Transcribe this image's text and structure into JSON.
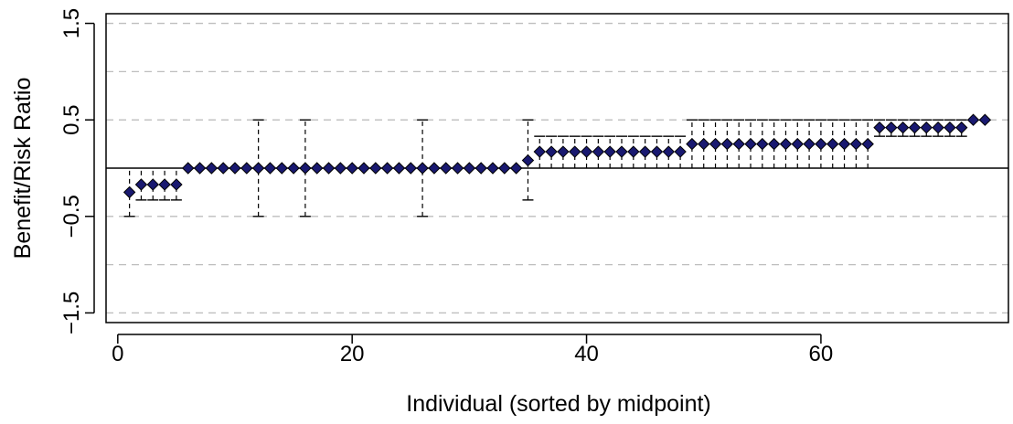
{
  "chart_data": {
    "type": "scatter",
    "title": "",
    "xlabel": "Individual (sorted by midpoint)",
    "ylabel": "Benefit/Risk Ratio",
    "xlim": [
      -1,
      76
    ],
    "ylim": [
      -1.6,
      1.6
    ],
    "x_ticks": [
      0,
      20,
      40,
      60
    ],
    "x_tick_labels": [
      "0",
      "20",
      "40",
      "60"
    ],
    "y_ticks": [
      -1.5,
      -0.5,
      0.5,
      1.5
    ],
    "y_tick_labels": [
      "−1.5",
      "−0.5",
      "0.5",
      "1.5"
    ],
    "grid_y": [
      -1.5,
      -1,
      -0.5,
      0.5,
      1,
      1.5
    ],
    "reference_line_y": 0,
    "colors": {
      "point_fill": "#191970",
      "point_stroke": "#000000",
      "grid": "#bebebe",
      "axis": "#000000"
    },
    "points": [
      {
        "x": 1,
        "mid": -0.25,
        "lo": -0.5,
        "hi": 0
      },
      {
        "x": 2,
        "mid": -0.17,
        "lo": -0.33,
        "hi": 0
      },
      {
        "x": 3,
        "mid": -0.17,
        "lo": -0.33,
        "hi": 0
      },
      {
        "x": 4,
        "mid": -0.17,
        "lo": -0.33,
        "hi": 0
      },
      {
        "x": 5,
        "mid": -0.17,
        "lo": -0.33,
        "hi": 0
      },
      {
        "x": 6,
        "mid": 0,
        "lo": 0,
        "hi": 0
      },
      {
        "x": 7,
        "mid": 0,
        "lo": 0,
        "hi": 0
      },
      {
        "x": 8,
        "mid": 0,
        "lo": 0,
        "hi": 0
      },
      {
        "x": 9,
        "mid": 0,
        "lo": 0,
        "hi": 0
      },
      {
        "x": 10,
        "mid": 0,
        "lo": 0,
        "hi": 0
      },
      {
        "x": 11,
        "mid": 0,
        "lo": 0,
        "hi": 0
      },
      {
        "x": 12,
        "mid": 0,
        "lo": -0.5,
        "hi": 0.5
      },
      {
        "x": 13,
        "mid": 0,
        "lo": 0,
        "hi": 0
      },
      {
        "x": 14,
        "mid": 0,
        "lo": 0,
        "hi": 0
      },
      {
        "x": 15,
        "mid": 0,
        "lo": 0,
        "hi": 0
      },
      {
        "x": 16,
        "mid": 0,
        "lo": -0.5,
        "hi": 0.5
      },
      {
        "x": 17,
        "mid": 0,
        "lo": 0,
        "hi": 0
      },
      {
        "x": 18,
        "mid": 0,
        "lo": 0,
        "hi": 0
      },
      {
        "x": 19,
        "mid": 0,
        "lo": 0,
        "hi": 0
      },
      {
        "x": 20,
        "mid": 0,
        "lo": 0,
        "hi": 0
      },
      {
        "x": 21,
        "mid": 0,
        "lo": 0,
        "hi": 0
      },
      {
        "x": 22,
        "mid": 0,
        "lo": 0,
        "hi": 0
      },
      {
        "x": 23,
        "mid": 0,
        "lo": 0,
        "hi": 0
      },
      {
        "x": 24,
        "mid": 0,
        "lo": 0,
        "hi": 0
      },
      {
        "x": 25,
        "mid": 0,
        "lo": 0,
        "hi": 0
      },
      {
        "x": 26,
        "mid": 0,
        "lo": -0.5,
        "hi": 0.5
      },
      {
        "x": 27,
        "mid": 0,
        "lo": 0,
        "hi": 0
      },
      {
        "x": 28,
        "mid": 0,
        "lo": 0,
        "hi": 0
      },
      {
        "x": 29,
        "mid": 0,
        "lo": 0,
        "hi": 0
      },
      {
        "x": 30,
        "mid": 0,
        "lo": 0,
        "hi": 0
      },
      {
        "x": 31,
        "mid": 0,
        "lo": 0,
        "hi": 0
      },
      {
        "x": 32,
        "mid": 0,
        "lo": 0,
        "hi": 0
      },
      {
        "x": 33,
        "mid": 0,
        "lo": 0,
        "hi": 0
      },
      {
        "x": 34,
        "mid": 0,
        "lo": 0,
        "hi": 0
      },
      {
        "x": 35,
        "mid": 0.08,
        "lo": -0.33,
        "hi": 0.5
      },
      {
        "x": 36,
        "mid": 0.17,
        "lo": 0,
        "hi": 0.33
      },
      {
        "x": 37,
        "mid": 0.17,
        "lo": 0,
        "hi": 0.33
      },
      {
        "x": 38,
        "mid": 0.17,
        "lo": 0,
        "hi": 0.33
      },
      {
        "x": 39,
        "mid": 0.17,
        "lo": 0,
        "hi": 0.33
      },
      {
        "x": 40,
        "mid": 0.17,
        "lo": 0,
        "hi": 0.33
      },
      {
        "x": 41,
        "mid": 0.17,
        "lo": 0,
        "hi": 0.33
      },
      {
        "x": 42,
        "mid": 0.17,
        "lo": 0,
        "hi": 0.33
      },
      {
        "x": 43,
        "mid": 0.17,
        "lo": 0,
        "hi": 0.33
      },
      {
        "x": 44,
        "mid": 0.17,
        "lo": 0,
        "hi": 0.33
      },
      {
        "x": 45,
        "mid": 0.17,
        "lo": 0,
        "hi": 0.33
      },
      {
        "x": 46,
        "mid": 0.17,
        "lo": 0,
        "hi": 0.33
      },
      {
        "x": 47,
        "mid": 0.17,
        "lo": 0,
        "hi": 0.33
      },
      {
        "x": 48,
        "mid": 0.17,
        "lo": 0,
        "hi": 0.33
      },
      {
        "x": 49,
        "mid": 0.25,
        "lo": 0,
        "hi": 0.5
      },
      {
        "x": 50,
        "mid": 0.25,
        "lo": 0,
        "hi": 0.5
      },
      {
        "x": 51,
        "mid": 0.25,
        "lo": 0,
        "hi": 0.5
      },
      {
        "x": 52,
        "mid": 0.25,
        "lo": 0,
        "hi": 0.5
      },
      {
        "x": 53,
        "mid": 0.25,
        "lo": 0,
        "hi": 0.5
      },
      {
        "x": 54,
        "mid": 0.25,
        "lo": 0,
        "hi": 0.5
      },
      {
        "x": 55,
        "mid": 0.25,
        "lo": 0,
        "hi": 0.5
      },
      {
        "x": 56,
        "mid": 0.25,
        "lo": 0,
        "hi": 0.5
      },
      {
        "x": 57,
        "mid": 0.25,
        "lo": 0,
        "hi": 0.5
      },
      {
        "x": 58,
        "mid": 0.25,
        "lo": 0,
        "hi": 0.5
      },
      {
        "x": 59,
        "mid": 0.25,
        "lo": 0,
        "hi": 0.5
      },
      {
        "x": 60,
        "mid": 0.25,
        "lo": 0,
        "hi": 0.5
      },
      {
        "x": 61,
        "mid": 0.25,
        "lo": 0,
        "hi": 0.5
      },
      {
        "x": 62,
        "mid": 0.25,
        "lo": 0,
        "hi": 0.5
      },
      {
        "x": 63,
        "mid": 0.25,
        "lo": 0,
        "hi": 0.5
      },
      {
        "x": 64,
        "mid": 0.25,
        "lo": 0,
        "hi": 0.5
      },
      {
        "x": 65,
        "mid": 0.42,
        "lo": 0.33,
        "hi": 0.5
      },
      {
        "x": 66,
        "mid": 0.42,
        "lo": 0.33,
        "hi": 0.5
      },
      {
        "x": 67,
        "mid": 0.42,
        "lo": 0.33,
        "hi": 0.5
      },
      {
        "x": 68,
        "mid": 0.42,
        "lo": 0.33,
        "hi": 0.5
      },
      {
        "x": 69,
        "mid": 0.42,
        "lo": 0.33,
        "hi": 0.5
      },
      {
        "x": 70,
        "mid": 0.42,
        "lo": 0.33,
        "hi": 0.5
      },
      {
        "x": 71,
        "mid": 0.42,
        "lo": 0.33,
        "hi": 0.5
      },
      {
        "x": 72,
        "mid": 0.42,
        "lo": 0.33,
        "hi": 0.5
      },
      {
        "x": 73,
        "mid": 0.5,
        "lo": 0.5,
        "hi": 0.5
      },
      {
        "x": 74,
        "mid": 0.5,
        "lo": 0.5,
        "hi": 0.5
      }
    ]
  }
}
